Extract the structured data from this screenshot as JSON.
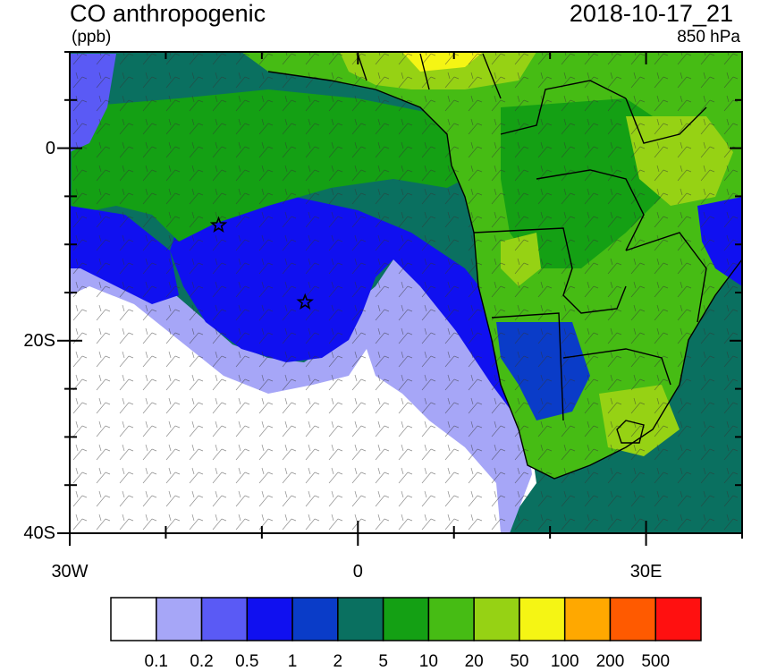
{
  "title_left": "CO anthropogenic",
  "title_right": "2018-10-17_21",
  "units": "(ppb)",
  "level": "850 hPa",
  "y_axis": {
    "labels": [
      {
        "value": 0,
        "text": "0"
      },
      {
        "value": -20,
        "text": "20S"
      },
      {
        "value": -40,
        "text": "40S"
      }
    ]
  },
  "x_axis": {
    "labels": [
      {
        "value": -30,
        "text": "30W"
      },
      {
        "value": 0,
        "text": "0"
      },
      {
        "value": 30,
        "text": "30E"
      }
    ]
  },
  "colorbar": {
    "colors": [
      "#ffffff",
      "#a6a6f7",
      "#5a5af5",
      "#1010f0",
      "#0a3cc8",
      "#0a7060",
      "#14a014",
      "#46bc14",
      "#96d214",
      "#f5f514",
      "#ffa800",
      "#ff5a00",
      "#ff1010"
    ],
    "labels": [
      "0.1",
      "0.2",
      "0.5",
      "1",
      "2",
      "5",
      "10",
      "20",
      "50",
      "100",
      "200",
      "500"
    ]
  },
  "markers": [
    {
      "symbol": "star",
      "lon": -14.5,
      "lat": -8
    },
    {
      "symbol": "star",
      "lon": -5.5,
      "lat": -16
    }
  ],
  "map_extent": {
    "lon": [
      -30,
      40
    ],
    "lat": [
      -40,
      10
    ]
  }
}
